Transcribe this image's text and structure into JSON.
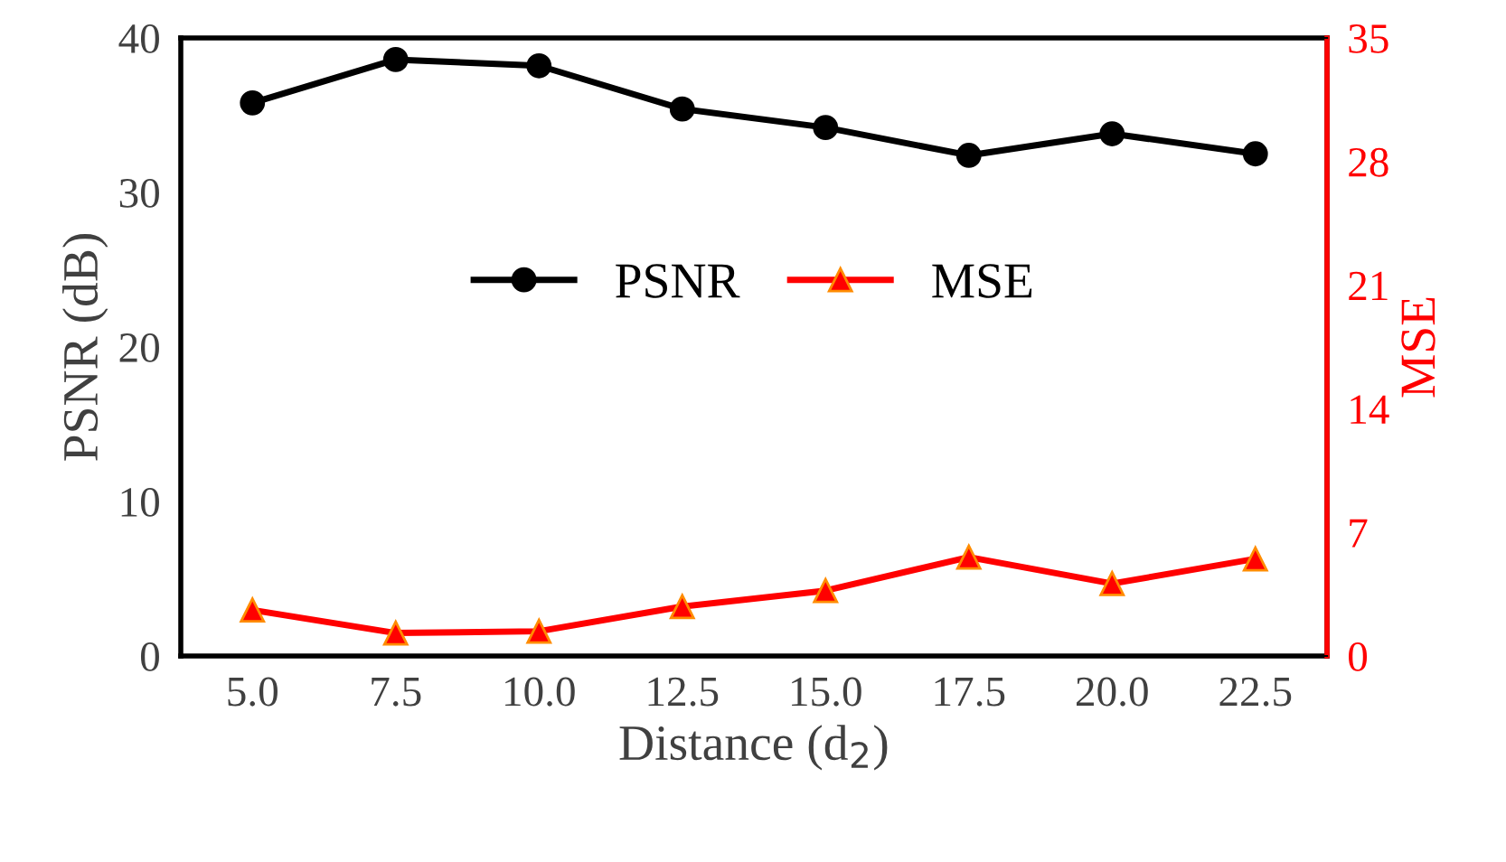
{
  "chart_data": {
    "type": "line",
    "xlabel": "Distance (d$_{2}$)",
    "ylabel": "PSNR (dB)",
    "y2label": "MSE",
    "categories": [
      "5.0",
      "7.5",
      "10.0",
      "12.5",
      "15.0",
      "17.5",
      "20.0",
      "22.5"
    ],
    "series": [
      {
        "name": "PSNR",
        "color": "#000000",
        "marker": "circle",
        "values": [
          35.8,
          38.6,
          38.2,
          35.4,
          34.2,
          32.4,
          33.8,
          32.5
        ]
      },
      {
        "name": "MSE",
        "color": "#ff0000",
        "marker": "triangle",
        "axis": "y2",
        "values": [
          2.6,
          1.3,
          1.4,
          2.8,
          3.7,
          5.6,
          4.1,
          5.5
        ]
      }
    ],
    "ylim": [
      0,
      40
    ],
    "yticks": [
      0,
      10,
      20,
      30,
      40
    ],
    "y2lim": [
      0,
      35
    ],
    "y2ticks": [
      0,
      7,
      14,
      21,
      28,
      35
    ],
    "grid": false,
    "legend": "center",
    "line_style": "solid"
  }
}
